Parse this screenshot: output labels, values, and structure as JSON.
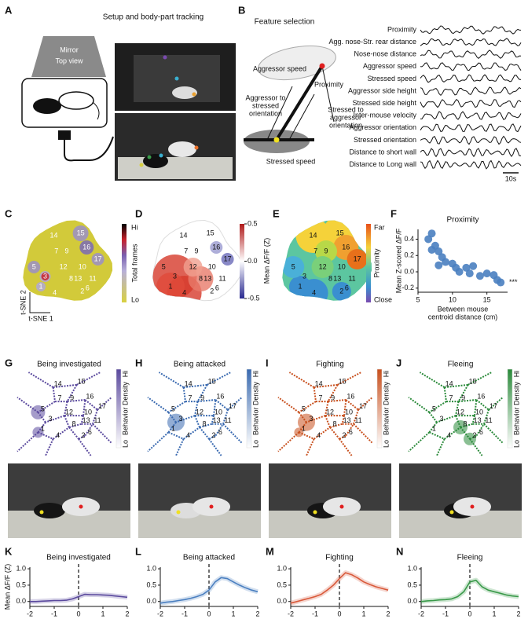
{
  "panel_labels": [
    "A",
    "B",
    "C",
    "D",
    "E",
    "F",
    "G",
    "H",
    "I",
    "J",
    "K",
    "L",
    "M",
    "N"
  ],
  "setup": {
    "title": "Setup and body-part tracking",
    "mirror": "Mirror",
    "top_view": "Top view"
  },
  "features": {
    "title": "Feature selection",
    "diagram": {
      "aggressor_speed": "Aggressor speed",
      "proximity": "Proximity",
      "aggressor_to_stressed": [
        "Aggressor to",
        "stressed",
        "orientation"
      ],
      "stressed_to_aggressor": [
        "Stressed to",
        "aggressor",
        "orientation"
      ],
      "stressed_speed": "Stressed speed"
    },
    "traces": [
      "Proximity",
      "Agg. nose-Str. rear distance",
      "Nose-nose distance",
      "Aggressor speed",
      "Stressed speed",
      "Aggressor side height",
      "Stressed side height",
      "Inter-mouse velocity",
      "Aggressor orientation",
      "Stressed orientation",
      "Distance to short wall",
      "Distance to Long wall"
    ],
    "scale_bar": "10s"
  },
  "tsne": {
    "cluster_labels": [
      "1",
      "2",
      "3",
      "4",
      "5",
      "6",
      "7",
      "8",
      "9",
      "10",
      "11",
      "12",
      "13",
      "14",
      "15",
      "16",
      "17"
    ],
    "axis_1": "t-SNE 1",
    "axis_2": "t-SNE 2",
    "hi": "Hi",
    "lo": "Lo",
    "frames_label": "Total frames",
    "dff_label": "Mean ΔF/F (Z)",
    "dff_ticks": [
      0.5,
      {
        "value": 0,
        "label": "0.0"
      },
      -0.5
    ],
    "proximity_label": "Proximity",
    "far": "Far",
    "close": "Close"
  },
  "behavior": {
    "density_label": "Behavior Density",
    "hi": "Hi",
    "lo": "Lo",
    "titles": [
      "Being investigated",
      "Being attacked",
      "Fighting",
      "Fleeing"
    ]
  },
  "chart_data": [
    {
      "type": "scatter",
      "title": "Proximity",
      "ylabel": "Mean Z-scored ΔF/F",
      "xlabel": [
        "Between mouse",
        "centroid distance (cm)"
      ],
      "annotation": "***",
      "color": "#4a7fc0",
      "x": [
        7,
        6.5,
        7.5,
        7,
        8,
        8.5,
        9,
        8,
        10,
        10.5,
        11,
        12,
        12.5,
        13,
        14,
        15,
        16,
        16.5,
        17
      ],
      "values": [
        0.47,
        0.4,
        0.32,
        0.27,
        0.25,
        0.18,
        0.12,
        0.08,
        0.1,
        0.05,
        0.0,
        0.05,
        -0.02,
        0.07,
        -0.05,
        -0.02,
        -0.04,
        -0.1,
        -0.13
      ],
      "xlim": [
        5,
        18
      ],
      "ylim": [
        -0.25,
        0.52
      ],
      "xticks": [
        5,
        10,
        15
      ],
      "yticks": [
        -0.2,
        {
          "value": 0,
          "label": "0.0"
        },
        0.2,
        0.4
      ]
    },
    {
      "type": "line",
      "title": "Being investigated",
      "ylabel": "Mean ΔF/F (Z)",
      "color": "#5b4a9e",
      "x": [
        -2,
        -1.75,
        -1.5,
        -1.25,
        -1,
        -0.75,
        -0.5,
        -0.25,
        0,
        0.25,
        0.5,
        0.75,
        1,
        1.25,
        1.5,
        1.75,
        2
      ],
      "values": [
        0.0,
        0.0,
        0.01,
        0.02,
        0.03,
        0.03,
        0.04,
        0.08,
        0.15,
        0.22,
        0.21,
        0.21,
        0.2,
        0.19,
        0.17,
        0.15,
        0.13
      ],
      "xlim": [
        -2,
        2
      ],
      "ylim": [
        -0.15,
        1.05
      ],
      "xticks": [
        -2,
        -1,
        0,
        1,
        2
      ],
      "yticks": [
        {
          "value": 0,
          "label": "0.0"
        },
        0.5,
        {
          "value": 1,
          "label": "1.0"
        }
      ]
    },
    {
      "type": "line",
      "title": "Being attacked",
      "color": "#4a7fc0",
      "x": [
        -2,
        -1.75,
        -1.5,
        -1.25,
        -1,
        -0.75,
        -0.5,
        -0.25,
        0,
        0.25,
        0.5,
        0.75,
        1,
        1.25,
        1.5,
        1.75,
        2
      ],
      "values": [
        -0.05,
        -0.02,
        0.0,
        0.03,
        0.06,
        0.1,
        0.15,
        0.22,
        0.35,
        0.6,
        0.73,
        0.7,
        0.6,
        0.5,
        0.42,
        0.35,
        0.3
      ],
      "xlim": [
        -2,
        2
      ],
      "ylim": [
        -0.15,
        1.05
      ],
      "xticks": [
        -2,
        -1,
        0,
        1,
        2
      ],
      "yticks": [
        {
          "value": 0,
          "label": "0.0"
        },
        0.5,
        {
          "value": 1,
          "label": "1.0"
        }
      ]
    },
    {
      "type": "line",
      "title": "Fighting",
      "color": "#d9593a",
      "x": [
        -2,
        -1.75,
        -1.5,
        -1.25,
        -1,
        -0.75,
        -0.5,
        -0.25,
        0,
        0.25,
        0.5,
        0.75,
        1,
        1.25,
        1.5,
        1.75,
        2
      ],
      "values": [
        -0.05,
        0.0,
        0.05,
        0.1,
        0.15,
        0.22,
        0.35,
        0.5,
        0.7,
        0.88,
        0.82,
        0.72,
        0.6,
        0.52,
        0.45,
        0.4,
        0.35
      ],
      "xlim": [
        -2,
        2
      ],
      "ylim": [
        -0.15,
        1.05
      ],
      "xticks": [
        -2,
        -1,
        0,
        1,
        2
      ],
      "yticks": [
        {
          "value": 0,
          "label": "0.0"
        },
        0.5,
        {
          "value": 1,
          "label": "1.0"
        }
      ]
    },
    {
      "type": "line",
      "title": "Fleeing",
      "color": "#3a9a4a",
      "x": [
        -2,
        -1.75,
        -1.5,
        -1.25,
        -1,
        -0.75,
        -0.5,
        -0.25,
        0,
        0.25,
        0.5,
        0.75,
        1,
        1.25,
        1.5,
        1.75,
        2
      ],
      "values": [
        0.0,
        0.02,
        0.03,
        0.05,
        0.06,
        0.08,
        0.15,
        0.3,
        0.6,
        0.65,
        0.45,
        0.35,
        0.3,
        0.25,
        0.2,
        0.17,
        0.15
      ],
      "xlim": [
        -2,
        2
      ],
      "ylim": [
        -0.15,
        1.05
      ],
      "xticks": [
        -2,
        -1,
        0,
        1,
        2
      ],
      "yticks": [
        {
          "value": 0,
          "label": "0.0"
        },
        0.5,
        {
          "value": 1,
          "label": "1.0"
        }
      ]
    }
  ]
}
